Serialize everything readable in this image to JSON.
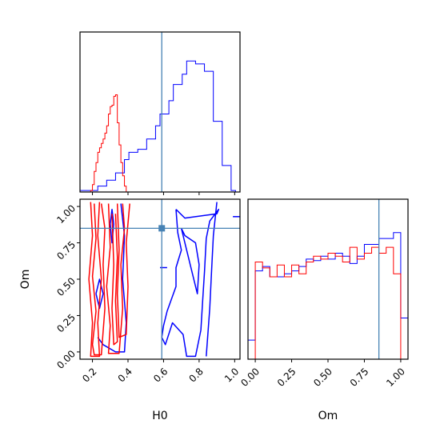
{
  "chart_data": {
    "type": "corner",
    "parameters": [
      "H0",
      "Om"
    ],
    "truth": {
      "H0": 0.59,
      "Om": 0.85
    },
    "colors": {
      "red": "#ff0000",
      "blue": "#0000ff",
      "truth": "#4682b4"
    },
    "axes": {
      "H0": {
        "range": [
          0.13,
          1.03
        ],
        "ticks": [
          0.2,
          0.4,
          0.6,
          0.8,
          1.0
        ],
        "tick_labels": [
          "0.2",
          "0.4",
          "0.6",
          "0.8",
          "1.0"
        ],
        "xlabel": "H0"
      },
      "Om": {
        "range": [
          -0.05,
          1.05
        ],
        "ticks": [
          0.0,
          0.25,
          0.5,
          0.75,
          1.0
        ],
        "tick_labels": [
          "0.00",
          "0.25",
          "0.50",
          "0.75",
          "1.00"
        ],
        "xlabel": "Om",
        "ylabel": "Om"
      }
    },
    "hist_H0": {
      "ymax": 1.0,
      "red": {
        "edges": [
          0.19,
          0.2,
          0.21,
          0.22,
          0.23,
          0.24,
          0.25,
          0.26,
          0.27,
          0.28,
          0.29,
          0.3,
          0.31,
          0.32,
          0.33,
          0.34,
          0.35,
          0.36,
          0.37,
          0.38,
          0.39
        ],
        "counts": [
          0.01,
          0.05,
          0.14,
          0.2,
          0.27,
          0.3,
          0.33,
          0.36,
          0.4,
          0.45,
          0.53,
          0.58,
          0.59,
          0.65,
          0.66,
          0.47,
          0.32,
          0.2,
          0.11,
          0.04
        ]
      },
      "blue": {
        "edges": [
          0.13,
          0.155,
          0.18,
          0.205,
          0.23,
          0.255,
          0.28,
          0.305,
          0.33,
          0.355,
          0.38,
          0.405,
          0.43,
          0.455,
          0.48,
          0.505,
          0.53,
          0.555,
          0.58,
          0.605,
          0.63,
          0.655,
          0.68,
          0.705,
          0.73,
          0.755,
          0.78,
          0.805,
          0.83,
          0.855,
          0.88,
          0.905,
          0.93,
          0.955,
          0.98,
          1.005
        ],
        "counts": [
          0.01,
          0.01,
          0.01,
          0.01,
          0.04,
          0.04,
          0.08,
          0.08,
          0.13,
          0.13,
          0.22,
          0.27,
          0.27,
          0.29,
          0.29,
          0.36,
          0.36,
          0.45,
          0.53,
          0.53,
          0.62,
          0.73,
          0.73,
          0.8,
          0.89,
          0.89,
          0.87,
          0.87,
          0.82,
          0.82,
          0.48,
          0.48,
          0.18,
          0.18,
          0.01
        ]
      }
    },
    "hist_Om": {
      "ymax": 1.0,
      "red": {
        "edges": [
          0.0,
          0.05,
          0.1,
          0.15,
          0.2,
          0.25,
          0.3,
          0.35,
          0.4,
          0.45,
          0.5,
          0.55,
          0.6,
          0.65,
          0.7,
          0.75,
          0.8,
          0.85,
          0.9,
          0.95,
          1.0
        ],
        "counts": [
          0.66,
          0.62,
          0.56,
          0.64,
          0.56,
          0.64,
          0.58,
          0.66,
          0.7,
          0.68,
          0.72,
          0.7,
          0.66,
          0.76,
          0.68,
          0.72,
          0.76,
          0.72,
          0.76,
          0.58
        ]
      },
      "blue": {
        "edges": [
          -0.05,
          0.0,
          0.05,
          0.1,
          0.15,
          0.2,
          0.25,
          0.3,
          0.35,
          0.4,
          0.45,
          0.5,
          0.55,
          0.6,
          0.65,
          0.7,
          0.75,
          0.8,
          0.85,
          0.9,
          0.95,
          1.0,
          1.05
        ],
        "counts": [
          0.13,
          0.6,
          0.63,
          0.56,
          0.56,
          0.58,
          0.6,
          0.63,
          0.68,
          0.67,
          0.7,
          0.68,
          0.72,
          0.7,
          0.65,
          0.7,
          0.78,
          0.78,
          0.82,
          0.82,
          0.86,
          0.28
        ]
      }
    },
    "contours": {
      "red": [
        [
          [
            0.21,
            1.02
          ],
          [
            0.22,
            0.78
          ],
          [
            0.2,
            0.52
          ],
          [
            0.22,
            0.28
          ],
          [
            0.2,
            0.05
          ],
          [
            0.21,
            -0.02
          ],
          [
            0.25,
            -0.02
          ],
          [
            0.27,
            0.3
          ],
          [
            0.26,
            0.6
          ],
          [
            0.27,
            0.85
          ],
          [
            0.25,
            1.02
          ]
        ],
        [
          [
            0.29,
            1.02
          ],
          [
            0.3,
            0.72
          ],
          [
            0.28,
            0.45
          ],
          [
            0.3,
            0.18
          ],
          [
            0.29,
            -0.01
          ],
          [
            0.35,
            -0.01
          ],
          [
            0.37,
            0.3
          ],
          [
            0.36,
            0.6
          ],
          [
            0.38,
            0.85
          ],
          [
            0.37,
            1.02
          ]
        ],
        [
          [
            0.34,
            1.02
          ],
          [
            0.35,
            0.7
          ],
          [
            0.34,
            0.4
          ],
          [
            0.35,
            0.1
          ],
          [
            0.39,
            0.12
          ],
          [
            0.4,
            0.45
          ],
          [
            0.39,
            0.75
          ],
          [
            0.41,
            1.02
          ]
        ],
        [
          [
            0.19,
            1.03
          ],
          [
            0.2,
            0.8
          ],
          [
            0.18,
            0.5
          ],
          [
            0.2,
            0.2
          ],
          [
            0.19,
            -0.03
          ],
          [
            0.24,
            -0.03
          ],
          [
            0.23,
            0.2
          ],
          [
            0.25,
            0.5
          ],
          [
            0.23,
            0.8
          ],
          [
            0.24,
            1.03
          ]
        ],
        [
          [
            0.31,
            0.95
          ],
          [
            0.32,
            0.6
          ],
          [
            0.31,
            0.3
          ],
          [
            0.32,
            0.05
          ],
          [
            0.34,
            0.07
          ],
          [
            0.33,
            0.35
          ],
          [
            0.34,
            0.65
          ],
          [
            0.33,
            0.95
          ]
        ]
      ],
      "blue": [
        [
          [
            0.67,
            0.98
          ],
          [
            0.72,
            0.92
          ],
          [
            0.9,
            0.95
          ],
          [
            0.91,
            0.98
          ],
          [
            0.86,
            0.9
          ],
          [
            0.84,
            0.78
          ],
          [
            0.83,
            0.55
          ],
          [
            0.82,
            0.35
          ],
          [
            0.81,
            0.15
          ],
          [
            0.78,
            -0.03
          ],
          [
            0.73,
            -0.03
          ],
          [
            0.71,
            0.12
          ],
          [
            0.65,
            0.2
          ],
          [
            0.61,
            0.05
          ],
          [
            0.59,
            0.1
          ],
          [
            0.6,
            0.18
          ],
          [
            0.62,
            0.28
          ],
          [
            0.67,
            0.45
          ],
          [
            0.67,
            0.58
          ],
          [
            0.7,
            0.7
          ],
          [
            0.68,
            0.82
          ],
          [
            0.67,
            0.98
          ]
        ],
        [
          [
            0.7,
            0.85
          ],
          [
            0.72,
            0.8
          ],
          [
            0.78,
            0.75
          ],
          [
            0.8,
            0.6
          ],
          [
            0.79,
            0.4
          ],
          [
            0.76,
            0.55
          ],
          [
            0.73,
            0.7
          ],
          [
            0.7,
            0.85
          ]
        ],
        [
          [
            0.9,
            1.03
          ],
          [
            0.88,
            0.8
          ],
          [
            0.87,
            0.55
          ],
          [
            0.86,
            0.3
          ],
          [
            0.84,
            -0.03
          ]
        ],
        [
          [
            0.22,
            0.4
          ],
          [
            0.24,
            0.3
          ],
          [
            0.26,
            0.4
          ],
          [
            0.24,
            0.5
          ],
          [
            0.22,
            0.4
          ]
        ],
        [
          [
            0.3,
            0.88
          ],
          [
            0.31,
            0.75
          ],
          [
            0.32,
            0.88
          ],
          [
            0.31,
            0.98
          ],
          [
            0.3,
            0.88
          ]
        ],
        [
          [
            0.36,
            1.02
          ],
          [
            0.38,
            0.8
          ],
          [
            0.37,
            0.5
          ],
          [
            0.39,
            0.2
          ],
          [
            0.38,
            0.0
          ],
          [
            0.33,
            0.0
          ],
          [
            0.26,
            0.05
          ],
          [
            0.23,
            0.1
          ]
        ],
        [
          [
            0.99,
            0.93
          ],
          [
            1.03,
            0.93
          ]
        ],
        [
          [
            0.58,
            0.58
          ],
          [
            0.62,
            0.58
          ]
        ]
      ]
    }
  }
}
